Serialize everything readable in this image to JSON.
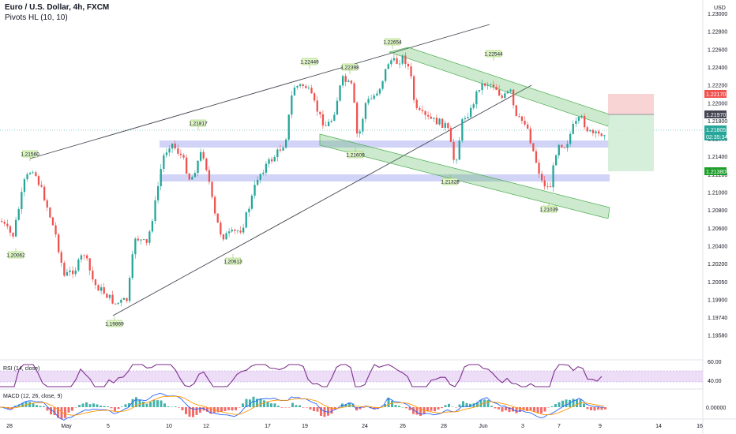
{
  "header": {
    "symbol": "Euro / U.S. Dollar, 4h, FXCM",
    "indicator": "Pivots HL (10, 10)"
  },
  "currency_label": "USD",
  "rsi_label": "RSI (14, close)",
  "macd_label": "MACD (12, 26, close, 9)",
  "price_tags": {
    "stop": "1.22170",
    "entry": "1.21970",
    "current": "1.21805",
    "countdown": "02:35:34",
    "target": "1.21380"
  },
  "colors": {
    "up": "#26a69a",
    "down": "#ef5350",
    "zone": "#c5c9f5",
    "channel": "#4caf50",
    "rsi": "#7e2f8e",
    "macd": "#2962ff",
    "signal": "#ff9800",
    "stop_box": "#f8cccc",
    "target_box": "#cfecd3"
  },
  "chart_data": [
    {
      "type": "candlestick",
      "title": "Euro / U.S. Dollar, 4h, FXCM",
      "y_axis": [
        "1.23000",
        "1.22800",
        "1.22600",
        "1.22400",
        "1.22200",
        "1.22000",
        "1.21800",
        "1.21600",
        "1.21400",
        "1.21200",
        "1.21000",
        "1.20800",
        "1.20600",
        "1.20400",
        "1.20200",
        "1.20050",
        "1.19900",
        "1.19740",
        "1.19580"
      ],
      "x_axis": [
        "28",
        "May",
        "5",
        "10",
        "12",
        "17",
        "19",
        "24",
        "26",
        "28",
        "Jun",
        "3",
        "7",
        "9",
        "14",
        "16"
      ],
      "ylim": [
        1.195,
        1.2315
      ],
      "pivots": [
        {
          "label": "1.21560",
          "value": 1.2156
        },
        {
          "label": "1.20062",
          "value": 1.2006
        },
        {
          "label": "1.19869",
          "value": 1.1987
        },
        {
          "label": "1.21817",
          "value": 1.2182
        },
        {
          "label": "1.20613",
          "value": 1.2061
        },
        {
          "label": "1.22449",
          "value": 1.2245
        },
        {
          "label": "1.22398",
          "value": 1.224
        },
        {
          "label": "1.21609",
          "value": 1.2161
        },
        {
          "label": "1.22654",
          "value": 1.2265
        },
        {
          "label": "1.21328",
          "value": 1.2133
        },
        {
          "label": "1.22544",
          "value": 1.2254
        },
        {
          "label": "1.21039",
          "value": 1.2104
        }
      ],
      "support_zones": [
        [
          1.2164,
          1.2172
        ],
        [
          1.2126,
          1.2134
        ]
      ],
      "position": {
        "stop": 1.2217,
        "entry": 1.2197,
        "target": 1.2138
      }
    },
    {
      "type": "line",
      "title": "RSI (14, close)",
      "y_axis": [
        "60.00",
        "40.00"
      ],
      "ylim": [
        30,
        70
      ],
      "band": [
        40,
        60
      ]
    },
    {
      "type": "line",
      "title": "MACD (12, 26, close, 9)",
      "y_axis": [
        "0.00000"
      ]
    }
  ]
}
